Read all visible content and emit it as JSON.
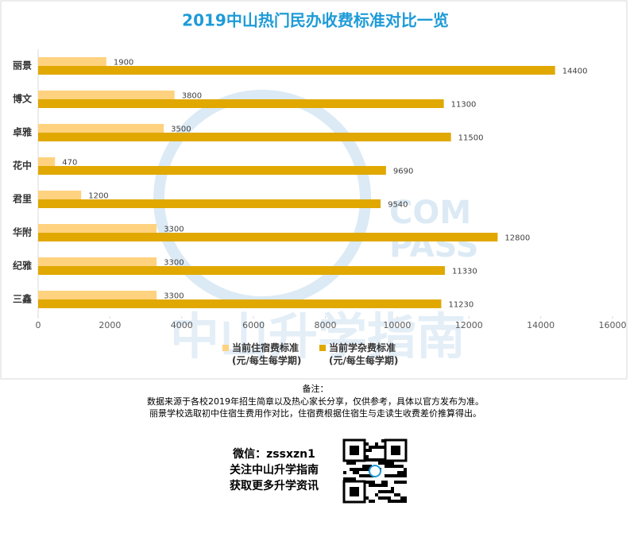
{
  "chart_data": {
    "type": "bar",
    "orientation": "horizontal",
    "title": "2019中山热门民办收费标准对比一览",
    "categories": [
      "丽景",
      "博文",
      "卓雅",
      "花中",
      "君里",
      "华附",
      "纪雅",
      "三鑫"
    ],
    "series": [
      {
        "name": "当前住宿费标准\n(元/每生每学期)",
        "color": "#FFD27F",
        "values": [
          1900,
          3800,
          3500,
          470,
          1200,
          3300,
          3300,
          3300
        ]
      },
      {
        "name": "当前学杂费标准\n(元/每生每学期)",
        "color": "#E0A800",
        "values": [
          14400,
          11300,
          11500,
          9690,
          9540,
          12800,
          11330,
          11230
        ]
      }
    ],
    "xlim": [
      0,
      16000
    ],
    "xticks": [
      0,
      2000,
      4000,
      6000,
      8000,
      10000,
      12000,
      14000,
      16000
    ],
    "watermark": {
      "logo": [
        "COM",
        "PASS"
      ],
      "text": "中山升学指南"
    },
    "notes": {
      "heading": "备注：",
      "lines": [
        "数据来源于各校2019年招生简章以及热心家长分享，仅供参考，具体以官方发布为准。",
        "丽景学校选取初中住宿生费用作对比，住宿费根据住宿生与走读生收费差价推算得出。"
      ]
    },
    "footer": {
      "lines": [
        "微信：zssxzn1",
        "关注中山升学指南",
        "获取更多升学资讯"
      ]
    }
  }
}
